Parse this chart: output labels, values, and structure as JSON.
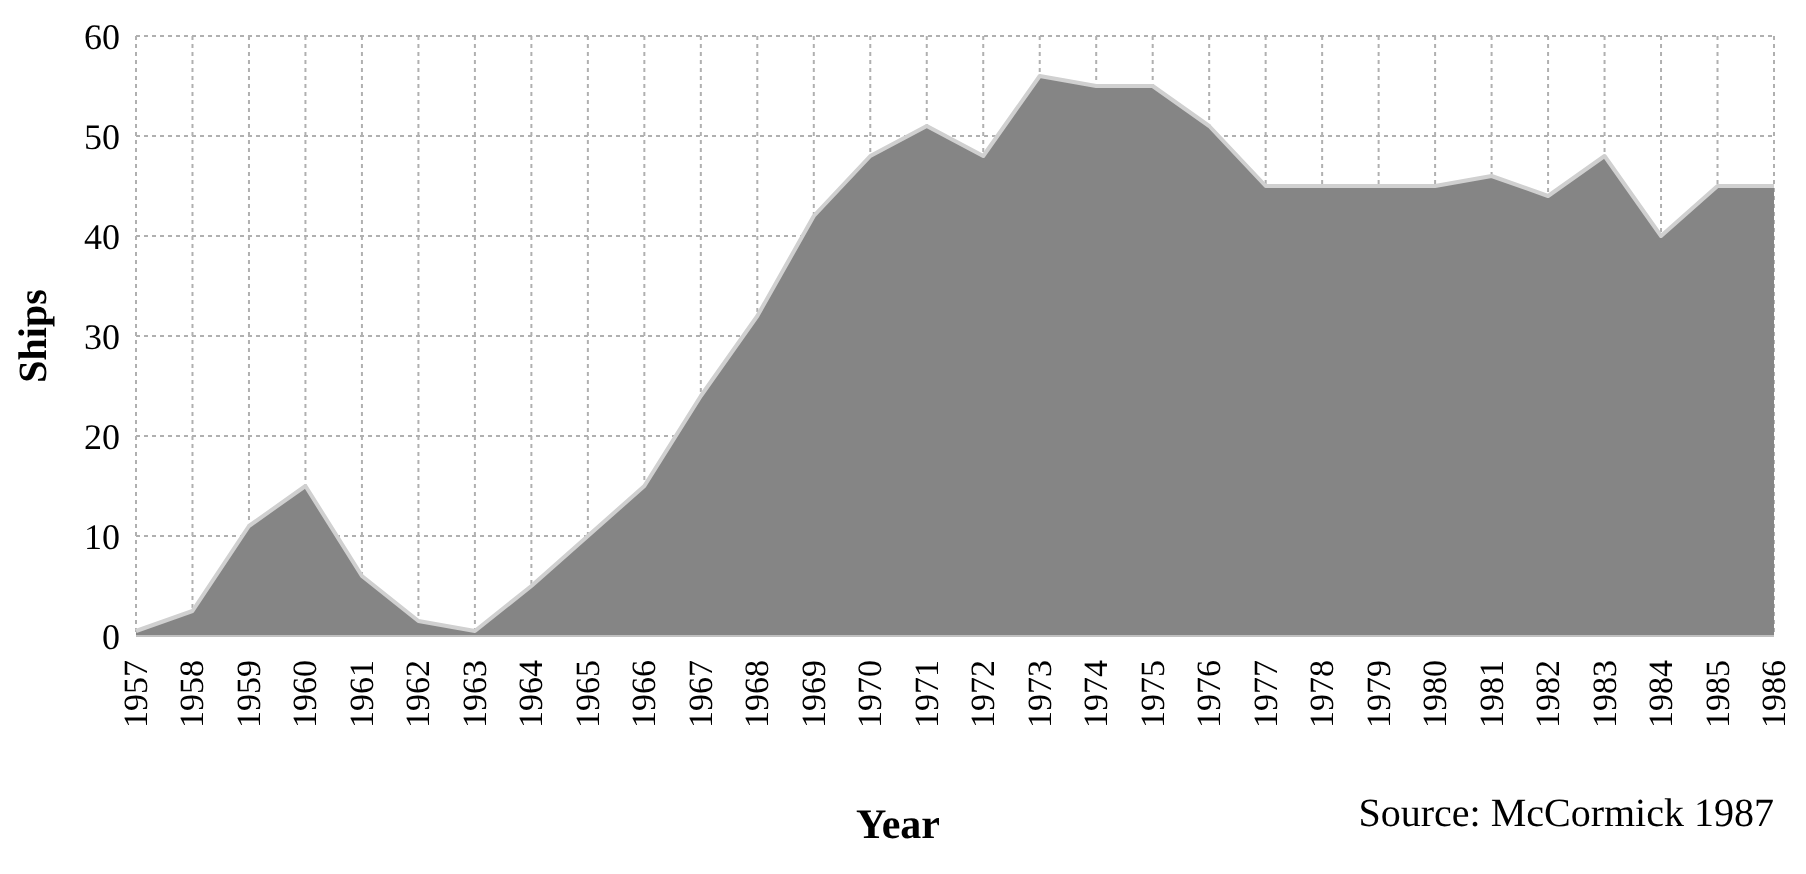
{
  "chart_data": {
    "type": "area",
    "xlabel": "Year",
    "ylabel": "Ships",
    "categories": [
      "1957",
      "1958",
      "1959",
      "1960",
      "1961",
      "1962",
      "1963",
      "1964",
      "1965",
      "1966",
      "1967",
      "1968",
      "1969",
      "1970",
      "1971",
      "1972",
      "1973",
      "1974",
      "1975",
      "1976",
      "1977",
      "1978",
      "1979",
      "1980",
      "1981",
      "1982",
      "1983",
      "1984",
      "1985",
      "1986"
    ],
    "series": [
      {
        "color": "#858585",
        "values": [
          0.5,
          2.5,
          11,
          15,
          6,
          1.5,
          0.5,
          5,
          10,
          15,
          24,
          32,
          42,
          48,
          51,
          48,
          56,
          55,
          55,
          51,
          45,
          45,
          45,
          45,
          46,
          44,
          48,
          40,
          45,
          45
        ]
      }
    ],
    "ylim": [
      0,
      60
    ],
    "yticks": [
      0,
      10,
      20,
      30,
      40,
      50,
      60
    ],
    "grid": true,
    "annotations": [
      "Source: McCormick 1987"
    ]
  }
}
